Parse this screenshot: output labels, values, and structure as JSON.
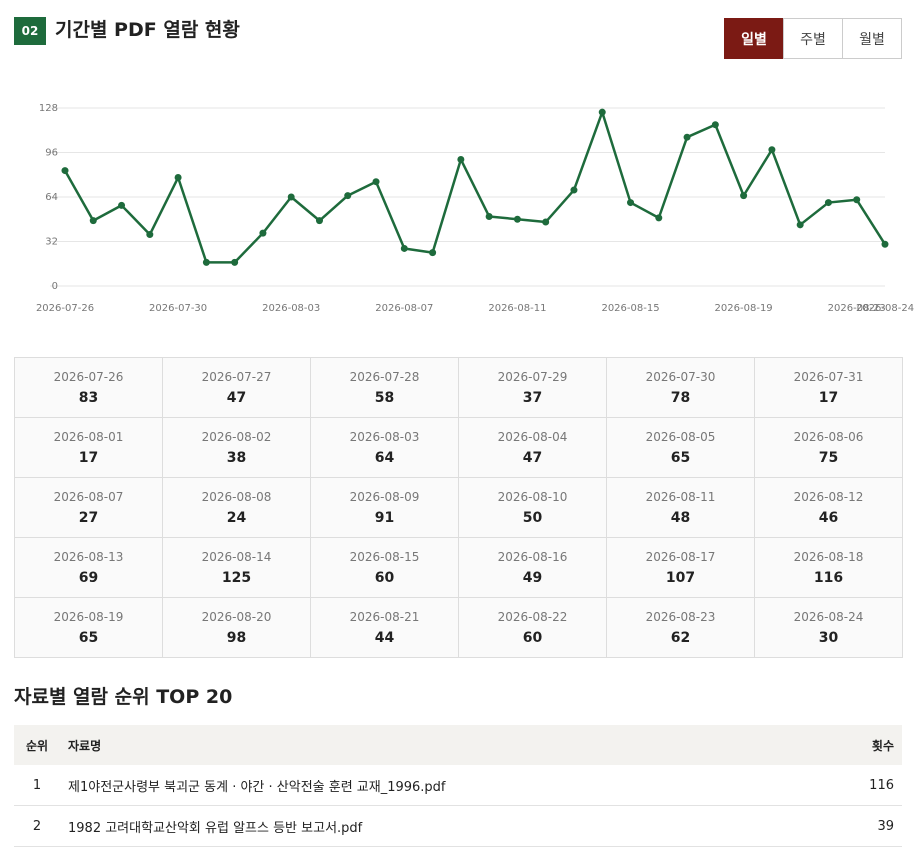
{
  "header": {
    "badge": "02",
    "title": "기간별 PDF 열람 현황"
  },
  "period_tabs": [
    {
      "label": "일별",
      "active": true
    },
    {
      "label": "주별",
      "active": false
    },
    {
      "label": "월별",
      "active": false
    }
  ],
  "chart_data": {
    "type": "line",
    "categories": [
      "2026-07-26",
      null,
      null,
      null,
      "2026-07-30",
      null,
      null,
      null,
      "2026-08-03",
      null,
      null,
      null,
      "2026-08-07",
      null,
      null,
      null,
      "2026-08-11",
      null,
      null,
      null,
      "2026-08-15",
      null,
      null,
      null,
      "2026-08-19",
      null,
      null,
      null,
      "2026-08-23",
      "2026-08-24"
    ],
    "values": [
      83,
      47,
      58,
      37,
      78,
      17,
      17,
      38,
      64,
      47,
      65,
      75,
      27,
      24,
      91,
      50,
      48,
      46,
      69,
      125,
      60,
      49,
      107,
      116,
      65,
      98,
      44,
      60,
      62,
      30
    ],
    "color": "#1e6b3c",
    "ylim": [
      0,
      128
    ],
    "yticks": [
      0,
      32,
      64,
      96,
      128
    ],
    "grid": true
  },
  "daily_table": {
    "cells": [
      {
        "date": "2026-07-26",
        "count": 83
      },
      {
        "date": "2026-07-27",
        "count": 47
      },
      {
        "date": "2026-07-28",
        "count": 58
      },
      {
        "date": "2026-07-29",
        "count": 37
      },
      {
        "date": "2026-07-30",
        "count": 78
      },
      {
        "date": "2026-07-31",
        "count": 17
      },
      {
        "date": "2026-08-01",
        "count": 17
      },
      {
        "date": "2026-08-02",
        "count": 38
      },
      {
        "date": "2026-08-03",
        "count": 64
      },
      {
        "date": "2026-08-04",
        "count": 47
      },
      {
        "date": "2026-08-05",
        "count": 65
      },
      {
        "date": "2026-08-06",
        "count": 75
      },
      {
        "date": "2026-08-07",
        "count": 27
      },
      {
        "date": "2026-08-08",
        "count": 24
      },
      {
        "date": "2026-08-09",
        "count": 91
      },
      {
        "date": "2026-08-10",
        "count": 50
      },
      {
        "date": "2026-08-11",
        "count": 48
      },
      {
        "date": "2026-08-12",
        "count": 46
      },
      {
        "date": "2026-08-13",
        "count": 69
      },
      {
        "date": "2026-08-14",
        "count": 125
      },
      {
        "date": "2026-08-15",
        "count": 60
      },
      {
        "date": "2026-08-16",
        "count": 49
      },
      {
        "date": "2026-08-17",
        "count": 107
      },
      {
        "date": "2026-08-18",
        "count": 116
      },
      {
        "date": "2026-08-19",
        "count": 65
      },
      {
        "date": "2026-08-20",
        "count": 98
      },
      {
        "date": "2026-08-21",
        "count": 44
      },
      {
        "date": "2026-08-22",
        "count": 60
      },
      {
        "date": "2026-08-23",
        "count": 62
      },
      {
        "date": "2026-08-24",
        "count": 30
      }
    ]
  },
  "ranking": {
    "title": "자료별 열람 순위 TOP 20",
    "columns": [
      "순위",
      "자료명",
      "횟수"
    ],
    "rows": [
      [
        1,
        "제1야전군사령부 북괴군 동계 · 야간 · 산악전술 훈련 교재_1996.pdf",
        116
      ],
      [
        2,
        "1982 고려대학교산악회 유럽 알프스 등반 보고서.pdf",
        39
      ]
    ]
  }
}
